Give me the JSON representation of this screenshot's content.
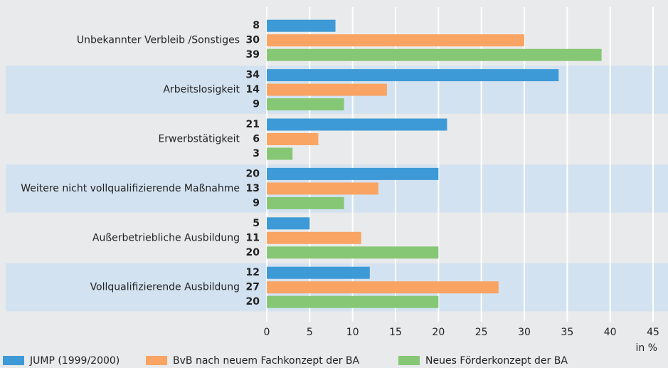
{
  "chart_data": {
    "type": "barh",
    "categories": [
      "Unbekannter Verbleib /Sonstiges",
      "Arbeitslosigkeit",
      "Erwerbstätigkeit",
      "Weitere nicht vollqualifizierende Maßnahme",
      "Außerbetriebliche Ausbildung",
      "Vollqualifizierende Ausbildung"
    ],
    "series": [
      {
        "name": "JUMP (1999/2000)",
        "color": "#3d9ad6",
        "values": [
          8,
          34,
          21,
          20,
          5,
          12
        ]
      },
      {
        "name": "BvB nach neuem Fachkonzept der BA",
        "color": "#f9a463",
        "values": [
          30,
          14,
          6,
          13,
          11,
          27
        ]
      },
      {
        "name": "Neues Förderkonzept der BA",
        "color": "#86c775",
        "values": [
          39,
          9,
          3,
          9,
          20,
          20
        ]
      }
    ],
    "xlabel": "in %",
    "xlim": [
      0,
      45
    ],
    "xticks": [
      0,
      5,
      10,
      15,
      20,
      25,
      30,
      35,
      40,
      45
    ],
    "grid": true,
    "legend": "bottom"
  }
}
